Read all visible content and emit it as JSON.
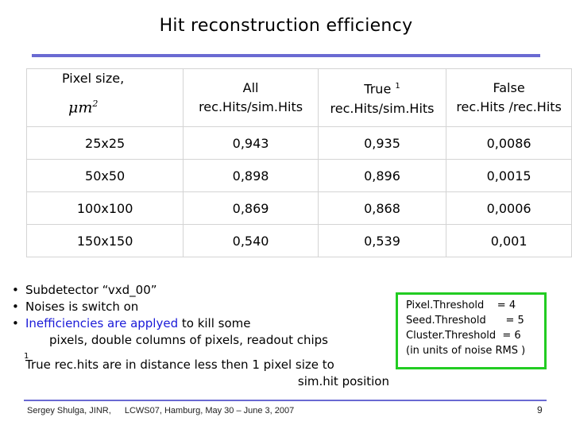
{
  "slide": {
    "title": "Hit reconstruction efficiency",
    "table": {
      "headers": [
        {
          "line1": "Pixel size,",
          "line2": "μm",
          "sup": "2"
        },
        {
          "line1": "All",
          "line2": "rec.Hits/sim.Hits"
        },
        {
          "line1": "True",
          "mark": "1",
          "line2": "rec.Hits/sim.Hits"
        },
        {
          "line1": "False",
          "line2": "rec.Hits /rec.Hits"
        }
      ],
      "rows": [
        [
          "25x25",
          "0,943",
          "0,935",
          "0,0086"
        ],
        [
          "50x50",
          "0,898",
          "0,896",
          "0,0015"
        ],
        [
          "100x100",
          "0,869",
          "0,868",
          "0,0006"
        ],
        [
          "150x150",
          "0,540",
          "0,539",
          "0,001"
        ]
      ]
    },
    "bullets": {
      "b1": "Subdetector “vxd_00”",
      "b2": "Noises is switch on",
      "b3_blue": "Inefficiencies are applyed",
      "b3_rest": " to kill some",
      "b3_cont": "pixels, double columns of pixels, readout chips",
      "footnote_mark": "1",
      "footnote_line1": "True rec.hits are in distance less then 1 pixel size to",
      "footnote_line2": "sim.hit position"
    },
    "thresholds": [
      "Pixel.Threshold    = 4",
      "Seed.Threshold      = 5",
      "Cluster.Threshold  = 6",
      "(in units of noise RMS )"
    ],
    "footer": {
      "author": "Sergey Shulga, JINR,",
      "event": "LCWS07, Hamburg, May 30 – June 3, 2007",
      "page": "9"
    },
    "colors": {
      "rule": "#6a6ad2",
      "blue_text": "#1a1ad8",
      "box_border": "#22cc22"
    }
  }
}
